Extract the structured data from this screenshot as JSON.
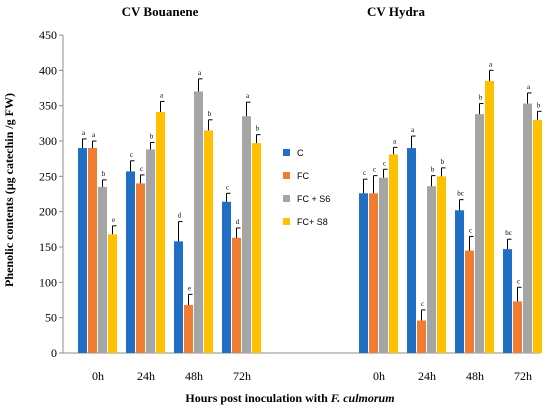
{
  "chart_data": {
    "type": "bar",
    "panel_titles": [
      "CV Bouanene",
      "CV Hydra"
    ],
    "categories": [
      "0h",
      "24h",
      "48h",
      "72h"
    ],
    "ylabel": "Phenolic contents (µg catechin /g FW)",
    "xlabel_prefix": "Hours post inoculation with ",
    "xlabel_italic": "F. culmorum",
    "ylim": [
      0,
      450
    ],
    "yticks": [
      "0",
      "50",
      "100",
      "150",
      "200",
      "250",
      "300",
      "350",
      "400",
      "450"
    ],
    "yticks_values": [
      0,
      50,
      100,
      150,
      200,
      250,
      300,
      350,
      400,
      450
    ],
    "grid": false,
    "legend_placement": "center",
    "series": [
      {
        "name": "C",
        "color": "#1f6fc5",
        "bouanene": [
          290,
          257,
          158,
          214
        ],
        "bouanene_err": [
          13,
          15,
          28,
          12
        ],
        "bouanene_sig": [
          "a",
          "c",
          "d",
          "c"
        ],
        "hydra": [
          226,
          290,
          202,
          147
        ],
        "hydra_err": [
          20,
          17,
          15,
          14
        ],
        "hydra_sig": [
          "c",
          "a",
          "bc",
          "bc"
        ]
      },
      {
        "name": "FC",
        "color": "#f07d32",
        "bouanene": [
          290,
          240,
          68,
          163
        ],
        "bouanene_err": [
          10,
          12,
          15,
          14
        ],
        "bouanene_sig": [
          "a",
          "c",
          "e",
          "d"
        ],
        "hydra": [
          226,
          46,
          145,
          73
        ],
        "hydra_err": [
          25,
          15,
          20,
          20
        ],
        "hydra_sig": [
          "c",
          "c",
          "c",
          "c"
        ]
      },
      {
        "name": "FC + S6",
        "color": "#a5a5a5",
        "bouanene": [
          235,
          288,
          370,
          335
        ],
        "bouanene_err": [
          10,
          10,
          18,
          20
        ],
        "bouanene_sig": [
          "b",
          "b",
          "a",
          "a"
        ],
        "hydra": [
          248,
          236,
          338,
          353
        ],
        "hydra_err": [
          12,
          15,
          15,
          15
        ],
        "hydra_sig": [
          "c",
          "b",
          "b",
          "a"
        ]
      },
      {
        "name": "FC+ S8",
        "color": "#ffc000",
        "bouanene": [
          168,
          341,
          315,
          297
        ],
        "bouanene_err": [
          12,
          15,
          15,
          12
        ],
        "bouanene_sig": [
          "e",
          "a",
          "b",
          "b"
        ],
        "hydra": [
          281,
          250,
          385,
          330
        ],
        "hydra_err": [
          10,
          12,
          15,
          12
        ],
        "hydra_sig": [
          "a",
          "b",
          "a",
          "b"
        ]
      }
    ]
  }
}
